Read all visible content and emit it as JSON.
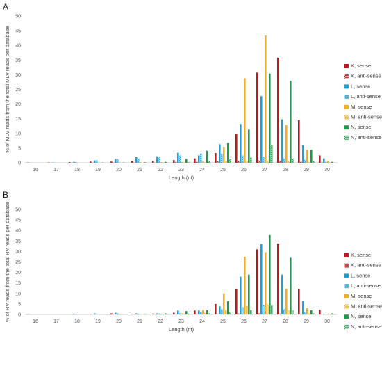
{
  "colors": {
    "K": "#c0161c",
    "L": "#1e9fd6",
    "M": "#f2b11c",
    "N": "#1e9a4a",
    "axis": "#bfbfbf"
  },
  "legend": [
    {
      "label": "K, sense",
      "color": "#c0161c",
      "pattern": "solid"
    },
    {
      "label": "K, anti-sense",
      "color": "#c0161c",
      "pattern": "cross"
    },
    {
      "label": "L, sense",
      "color": "#1e9fd6",
      "pattern": "solid"
    },
    {
      "label": "L, anti-sense",
      "color": "#1e9fd6",
      "pattern": "cross"
    },
    {
      "label": "M, sense",
      "color": "#f2b11c",
      "pattern": "solid"
    },
    {
      "label": "M, anti-sense",
      "color": "#f2b11c",
      "pattern": "cross"
    },
    {
      "label": "N, sense",
      "color": "#1e9a4a",
      "pattern": "solid"
    },
    {
      "label": "N, anti-sense",
      "color": "#1e9a4a",
      "pattern": "cross"
    }
  ],
  "chart_data": [
    {
      "panel": "A",
      "type": "bar",
      "ylabel": "% of MLV reads from the total MLV reads per database",
      "xlabel": "Length (nt)",
      "ylim": [
        0,
        50
      ],
      "yticks": [
        0,
        5,
        10,
        15,
        20,
        25,
        30,
        35,
        40,
        45,
        50
      ],
      "categories": [
        "16",
        "17",
        "18",
        "19",
        "20",
        "21",
        "22",
        "23",
        "24",
        "25",
        "26",
        "27",
        "28",
        "29",
        "30"
      ],
      "grid": false,
      "legend_position": "right",
      "series": [
        {
          "name": "K, sense",
          "values": [
            0.1,
            0.1,
            0.2,
            0.4,
            0.4,
            0.5,
            0.6,
            0.9,
            1.5,
            3.3,
            9.9,
            30.7,
            35.8,
            14.5,
            2.5
          ]
        },
        {
          "name": "K, anti-sense",
          "values": [
            0,
            0,
            0,
            0.1,
            0.1,
            0.1,
            0.1,
            0.2,
            0.3,
            0.5,
            0.6,
            0.8,
            0.6,
            0.3,
            0.1
          ]
        },
        {
          "name": "L, sense",
          "values": [
            0,
            0.1,
            0.3,
            0.8,
            1.3,
            1.9,
            2.2,
            3.4,
            2.5,
            6.3,
            13.2,
            22.7,
            14.8,
            6.0,
            1.5
          ]
        },
        {
          "name": "L, anti-sense",
          "values": [
            0,
            0.1,
            0.2,
            0.8,
            1.2,
            1.5,
            1.8,
            2.5,
            3.2,
            3.0,
            2.5,
            2.0,
            1.5,
            1.0,
            0.3
          ]
        },
        {
          "name": "M, sense",
          "values": [
            0,
            0,
            0,
            0.1,
            0.1,
            0.2,
            0.2,
            0.3,
            0.4,
            5.3,
            28.8,
            43.4,
            12.9,
            4.5,
            0.5
          ]
        },
        {
          "name": "M, anti-sense",
          "values": [
            0,
            0,
            0,
            0,
            0,
            0,
            0.1,
            0.1,
            0.2,
            0.5,
            0.6,
            0.8,
            0.5,
            0.3,
            0.1
          ]
        },
        {
          "name": "N, sense",
          "values": [
            0,
            0,
            0,
            0.1,
            0.1,
            0.2,
            0.3,
            1.3,
            4.1,
            6.8,
            11.3,
            30.4,
            27.9,
            4.4,
            0.3
          ]
        },
        {
          "name": "N, anti-sense",
          "values": [
            0,
            0,
            0,
            0,
            0,
            0.1,
            0.1,
            0.2,
            0.5,
            1.2,
            2.0,
            5.9,
            1.5,
            0.5,
            0.1
          ]
        }
      ]
    },
    {
      "panel": "B",
      "type": "bar",
      "ylabel": "% of RV reads from the total RV reads per database",
      "xlabel": "Length (nt)",
      "ylim": [
        0,
        50
      ],
      "yticks": [
        0,
        5,
        10,
        15,
        20,
        25,
        30,
        35,
        40,
        45,
        50
      ],
      "categories": [
        "16",
        "17",
        "18",
        "19",
        "20",
        "21",
        "22",
        "23",
        "24",
        "25",
        "26",
        "27",
        "28",
        "29",
        "30"
      ],
      "grid": false,
      "legend_position": "right",
      "series": [
        {
          "name": "K, sense",
          "values": [
            0.1,
            0,
            0,
            0.1,
            0.5,
            0.3,
            0.4,
            0.8,
            1.9,
            5.0,
            12.0,
            31.0,
            33.8,
            12.2,
            2.2
          ]
        },
        {
          "name": "K, anti-sense",
          "values": [
            0,
            0,
            0,
            0,
            0.1,
            0.1,
            0.1,
            0.1,
            0.2,
            0.3,
            0.4,
            0.5,
            0.4,
            0.2,
            0.1
          ]
        },
        {
          "name": "L, sense",
          "values": [
            0,
            0,
            0.3,
            0.5,
            0.8,
            0.5,
            0.5,
            1.9,
            1.9,
            3.9,
            18.0,
            33.6,
            19.0,
            6.5,
            0.3
          ]
        },
        {
          "name": "L, anti-sense",
          "values": [
            0,
            0,
            0.2,
            0.2,
            0.5,
            0.3,
            0.4,
            0.6,
            1.0,
            2.5,
            3.5,
            4.5,
            2.5,
            1.0,
            0.2
          ]
        },
        {
          "name": "M, sense",
          "values": [
            0,
            0,
            0,
            0.1,
            0.1,
            0.2,
            0.3,
            0.5,
            2.1,
            10.0,
            27.5,
            29.7,
            12.3,
            3.1,
            0.4
          ]
        },
        {
          "name": "M, anti-sense",
          "values": [
            0,
            0,
            0,
            0,
            0,
            0.1,
            0.1,
            0.3,
            0.8,
            2.0,
            4.0,
            5.0,
            2.0,
            0.5,
            0.1
          ]
        },
        {
          "name": "N, sense",
          "values": [
            0,
            0,
            0,
            0,
            0,
            0.2,
            0.5,
            1.6,
            2.0,
            6.3,
            19.0,
            37.8,
            27.0,
            2.0,
            0.5
          ]
        },
        {
          "name": "N, anti-sense",
          "values": [
            0,
            0,
            0,
            0,
            0,
            0.1,
            0.1,
            0.3,
            0.5,
            1.0,
            2.0,
            4.5,
            2.0,
            0.5,
            0.1
          ]
        }
      ]
    }
  ],
  "panels": {
    "a_letter": "A",
    "b_letter": "B"
  }
}
